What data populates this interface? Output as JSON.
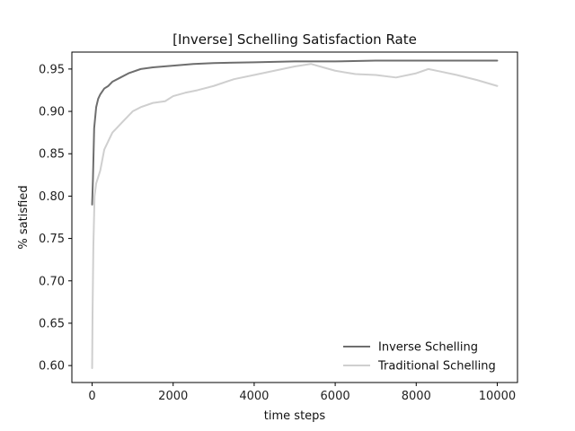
{
  "chart_data": {
    "type": "line",
    "title": "[Inverse] Schelling Satisfaction Rate",
    "xlabel": "time steps",
    "ylabel": "% satisfied",
    "xlim": [
      -500,
      10500
    ],
    "ylim": [
      0.58,
      0.97
    ],
    "xticks": [
      0,
      2000,
      4000,
      6000,
      8000,
      10000
    ],
    "xtick_labels": [
      "0",
      "2000",
      "4000",
      "6000",
      "8000",
      "10000"
    ],
    "yticks": [
      0.6,
      0.65,
      0.7,
      0.75,
      0.8,
      0.85,
      0.9,
      0.95
    ],
    "ytick_labels": [
      "0.60",
      "0.65",
      "0.70",
      "0.75",
      "0.80",
      "0.85",
      "0.90",
      "0.95"
    ],
    "grid": false,
    "legend_position": "bottom-right",
    "series": [
      {
        "name": "Inverse Schelling",
        "color": "#6e6e6e",
        "points": [
          [
            0,
            0.79
          ],
          [
            20,
            0.82
          ],
          [
            50,
            0.88
          ],
          [
            100,
            0.905
          ],
          [
            150,
            0.915
          ],
          [
            200,
            0.92
          ],
          [
            300,
            0.927
          ],
          [
            400,
            0.93
          ],
          [
            500,
            0.935
          ],
          [
            700,
            0.94
          ],
          [
            900,
            0.945
          ],
          [
            1200,
            0.95
          ],
          [
            1500,
            0.952
          ],
          [
            2000,
            0.954
          ],
          [
            2500,
            0.956
          ],
          [
            3000,
            0.957
          ],
          [
            4000,
            0.958
          ],
          [
            5000,
            0.959
          ],
          [
            6000,
            0.959
          ],
          [
            7000,
            0.96
          ],
          [
            8000,
            0.96
          ],
          [
            9000,
            0.96
          ],
          [
            10000,
            0.96
          ]
        ]
      },
      {
        "name": "Traditional Schelling",
        "color": "#cfcfcf",
        "points": [
          [
            0,
            0.597
          ],
          [
            10,
            0.66
          ],
          [
            30,
            0.74
          ],
          [
            60,
            0.8
          ],
          [
            100,
            0.815
          ],
          [
            200,
            0.83
          ],
          [
            300,
            0.855
          ],
          [
            400,
            0.865
          ],
          [
            500,
            0.875
          ],
          [
            600,
            0.88
          ],
          [
            800,
            0.89
          ],
          [
            1000,
            0.9
          ],
          [
            1200,
            0.905
          ],
          [
            1500,
            0.91
          ],
          [
            1800,
            0.912
          ],
          [
            2000,
            0.918
          ],
          [
            2300,
            0.922
          ],
          [
            2600,
            0.925
          ],
          [
            3000,
            0.93
          ],
          [
            3500,
            0.938
          ],
          [
            4000,
            0.943
          ],
          [
            4500,
            0.948
          ],
          [
            5000,
            0.953
          ],
          [
            5400,
            0.956
          ],
          [
            5700,
            0.952
          ],
          [
            6000,
            0.948
          ],
          [
            6500,
            0.944
          ],
          [
            7000,
            0.943
          ],
          [
            7500,
            0.94
          ],
          [
            8000,
            0.945
          ],
          [
            8300,
            0.95
          ],
          [
            8600,
            0.947
          ],
          [
            9000,
            0.943
          ],
          [
            9500,
            0.937
          ],
          [
            10000,
            0.93
          ]
        ]
      }
    ]
  }
}
